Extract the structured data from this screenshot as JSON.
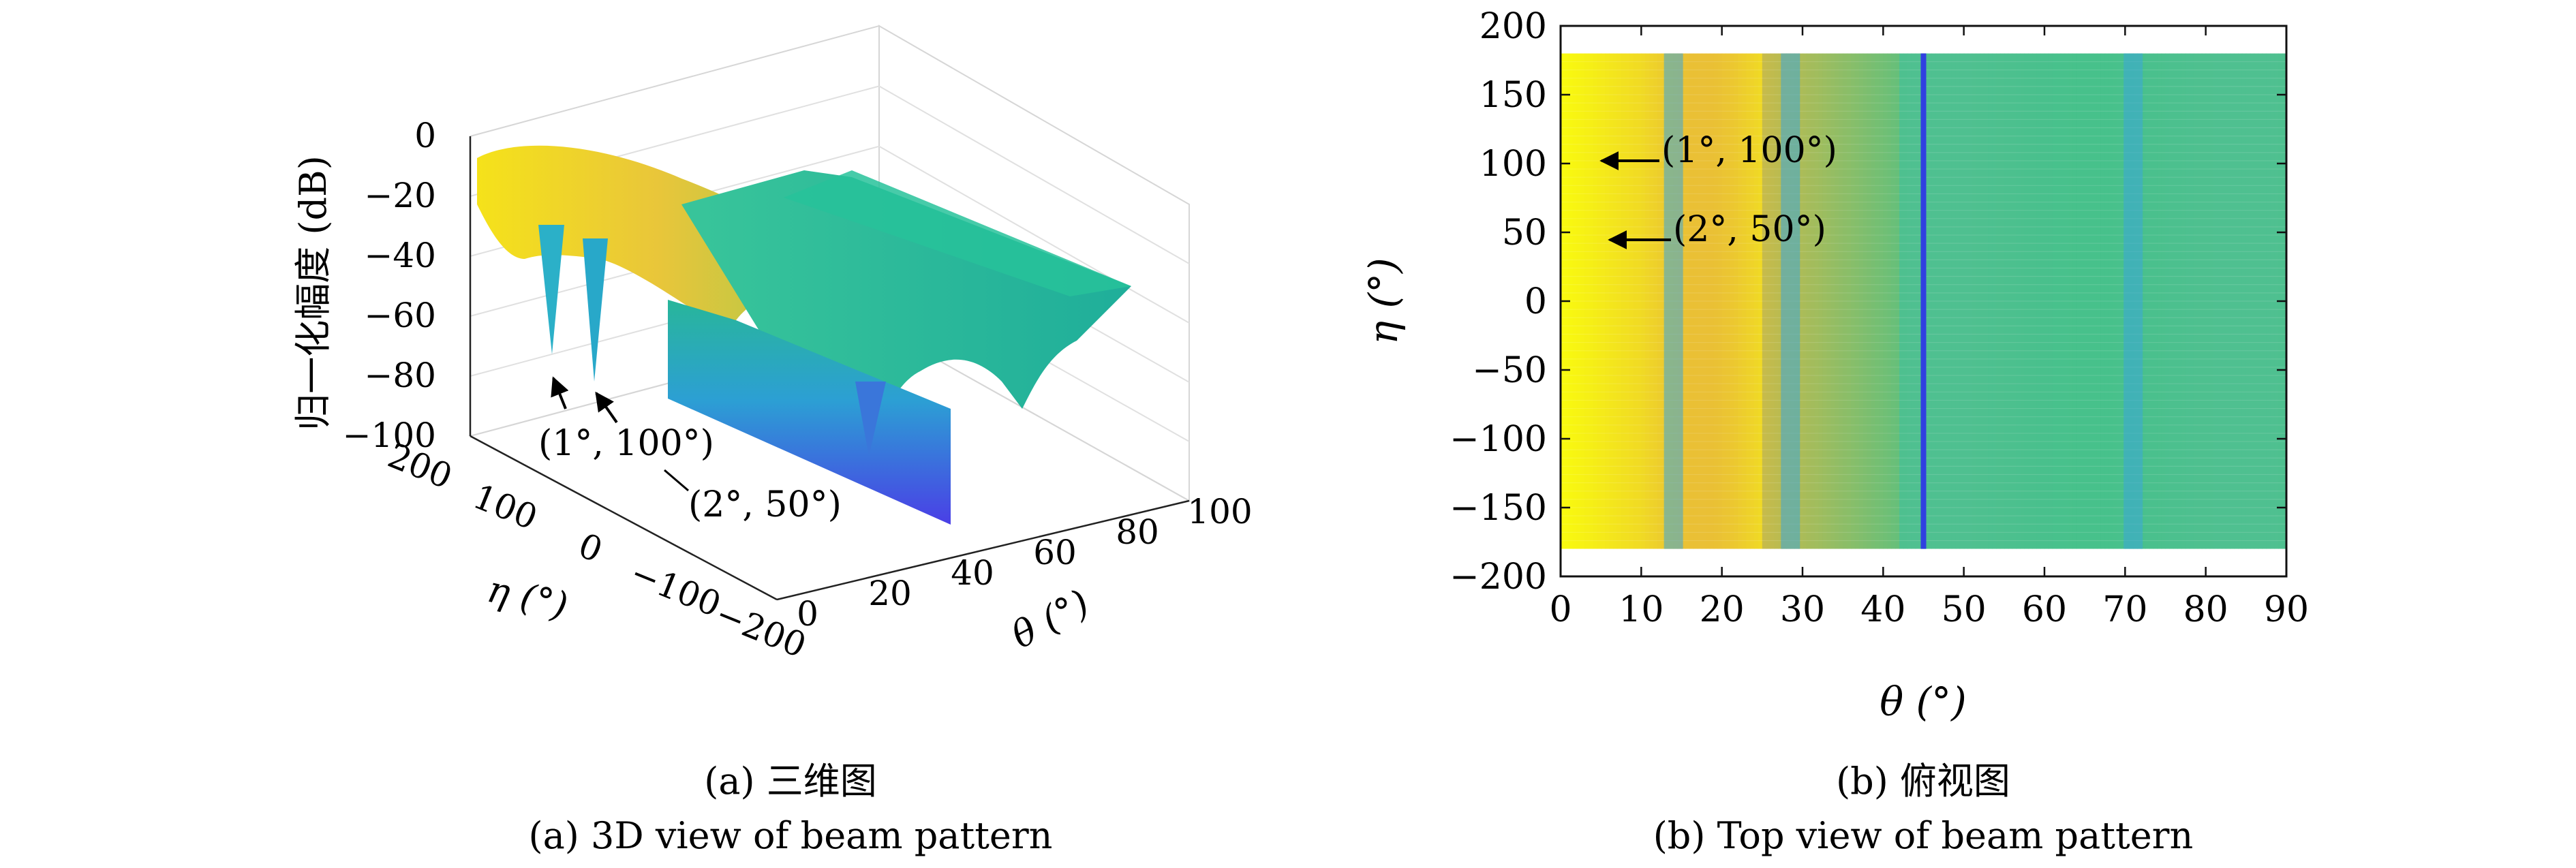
{
  "chart_data": [
    {
      "type": "surface3d",
      "caption_cn": "(a) 三维图",
      "caption_en": "(a) 3D view of beam pattern",
      "zlabel": "归一化幅度 (dB)",
      "xlabel": "η (°)",
      "ylabel": "θ (°)",
      "eta_ticks": [
        "200",
        "100",
        "0",
        "−100",
        "−200"
      ],
      "theta_ticks": [
        "0",
        "20",
        "40",
        "60",
        "80",
        "100"
      ],
      "z_ticks": [
        "0",
        "−20",
        "−40",
        "−60",
        "−80",
        "−100"
      ],
      "eta_range": [
        -200,
        200
      ],
      "theta_range": [
        0,
        100
      ],
      "z_range": [
        -100,
        0
      ],
      "grid": true,
      "annotations": [
        {
          "text": "(1°, 100°)",
          "theta": 1,
          "eta": 100,
          "z": -90
        },
        {
          "text": "(2°, 50°)",
          "theta": 2,
          "eta": 50,
          "z": -90
        }
      ],
      "beam_profile": {
        "theta": [
          0,
          5,
          10,
          15,
          20,
          25,
          30,
          35,
          40,
          45,
          50,
          55,
          60,
          65,
          70,
          75,
          80,
          85,
          90
        ],
        "values": [
          -3,
          -5,
          -8,
          -11,
          -15,
          -19,
          -26,
          -33,
          -40,
          -90,
          -28,
          -28,
          -30,
          -33,
          -38,
          -35,
          -33,
          -30,
          -28
        ]
      }
    },
    {
      "type": "heatmap",
      "caption_cn": "(b) 俯视图",
      "caption_en": "(b) Top view of beam pattern",
      "xlabel": "θ (°)",
      "ylabel": "η (°)",
      "xlim": [
        0,
        90
      ],
      "ylim": [
        -200,
        200
      ],
      "x_ticks": [
        "0",
        "10",
        "20",
        "30",
        "40",
        "50",
        "60",
        "70",
        "80",
        "90"
      ],
      "y_ticks": [
        "200",
        "150",
        "100",
        "50",
        "0",
        "−50",
        "−100",
        "−150",
        "−200"
      ],
      "data_extent": {
        "theta": [
          0,
          90
        ],
        "eta": [
          -180,
          180
        ]
      },
      "null_lines_theta": [
        14,
        28.5,
        45,
        71
      ],
      "colors": {
        "high": "#f9fb0e",
        "mid": "#e8b93a",
        "low": "#45c18a",
        "null": "#3040e0"
      },
      "annotations": [
        {
          "text": "(1°, 100°)",
          "theta": 1,
          "eta": 100
        },
        {
          "text": "(2°, 50°)",
          "theta": 2,
          "eta": 50
        }
      ]
    }
  ]
}
